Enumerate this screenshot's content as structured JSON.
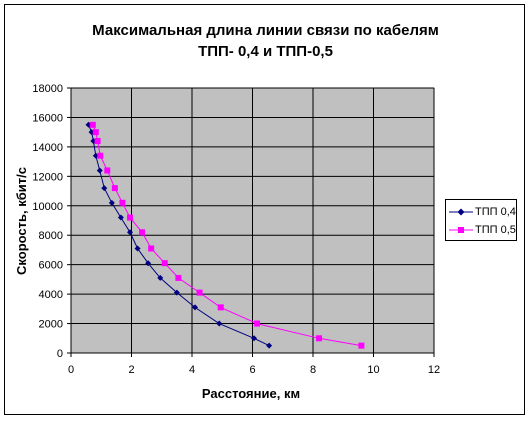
{
  "chart_data": {
    "type": "line",
    "title_line1": "Максимальная длина линии связи по кабелям",
    "title_line2": "ТПП- 0,4  и ТПП-0,5",
    "xlabel": "Расстояние, км",
    "ylabel": "Скорость, кбит/с",
    "xlim": [
      0,
      12
    ],
    "ylim": [
      0,
      18000
    ],
    "x_ticks": [
      0,
      2,
      4,
      6,
      8,
      10,
      12
    ],
    "y_ticks": [
      0,
      2000,
      4000,
      6000,
      8000,
      10000,
      12000,
      14000,
      16000,
      18000
    ],
    "grid": true,
    "legend_position": "right",
    "plot_background": "#c0c0c0",
    "series": [
      {
        "name": "ТПП 0,4",
        "color": "#000080",
        "marker": "diamond",
        "points": [
          [
            0.58,
            15500
          ],
          [
            0.68,
            15000
          ],
          [
            0.74,
            14400
          ],
          [
            0.82,
            13400
          ],
          [
            0.95,
            12400
          ],
          [
            1.1,
            11200
          ],
          [
            1.35,
            10200
          ],
          [
            1.65,
            9200
          ],
          [
            1.95,
            8200
          ],
          [
            2.2,
            7100
          ],
          [
            2.55,
            6100
          ],
          [
            2.95,
            5100
          ],
          [
            3.5,
            4100
          ],
          [
            4.1,
            3100
          ],
          [
            4.9,
            2000
          ],
          [
            6.05,
            1000
          ],
          [
            6.55,
            500
          ]
        ]
      },
      {
        "name": "ТПП 0,5",
        "color": "#ff00ff",
        "marker": "square",
        "points": [
          [
            0.72,
            15500
          ],
          [
            0.82,
            15000
          ],
          [
            0.88,
            14400
          ],
          [
            0.97,
            13400
          ],
          [
            1.2,
            12400
          ],
          [
            1.45,
            11200
          ],
          [
            1.7,
            10200
          ],
          [
            1.95,
            9200
          ],
          [
            2.35,
            8200
          ],
          [
            2.65,
            7100
          ],
          [
            3.1,
            6100
          ],
          [
            3.55,
            5100
          ],
          [
            4.25,
            4100
          ],
          [
            4.95,
            3100
          ],
          [
            6.15,
            2000
          ],
          [
            8.2,
            1000
          ],
          [
            9.6,
            500
          ]
        ]
      }
    ]
  }
}
